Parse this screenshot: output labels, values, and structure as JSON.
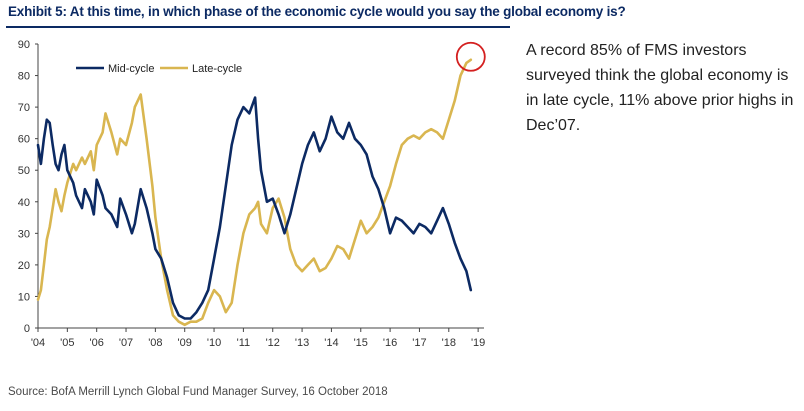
{
  "header": {
    "title": "Exhibit 5: At this time, in which phase of the economic cycle would you say the global economy is?"
  },
  "annotation": {
    "text": "A record 85% of FMS investors surveyed think the global economy is in late cycle, 11% above prior highs in Dec’07."
  },
  "source": {
    "text": "Source: BofA Merrill Lynch Global Fund Manager Survey, 16 October 2018"
  },
  "colors": {
    "mid_cycle": "#0c2a63",
    "late_cycle": "#d9b650",
    "highlight_circle": "#d42020",
    "axis": "#444444"
  },
  "chart_data": {
    "type": "line",
    "title": "",
    "xlabel": "",
    "ylabel": "",
    "ylim": [
      0,
      90
    ],
    "xlim": [
      2004.0,
      2019.2
    ],
    "yticks": [
      "0",
      "10",
      "20",
      "30",
      "40",
      "50",
      "60",
      "70",
      "80",
      "90"
    ],
    "xticks": [
      "'04",
      "'05",
      "'06",
      "'07",
      "'08",
      "'09",
      "'10",
      "'11",
      "'12",
      "'13",
      "'14",
      "'15",
      "'16",
      "'17",
      "'18",
      "'19"
    ],
    "legend": {
      "placement": "top-left",
      "entries": [
        "Mid-cycle",
        "Late-cycle"
      ]
    },
    "grid": false,
    "highlight": {
      "series": "Late-cycle",
      "x": 2018.75,
      "y": 85,
      "marker": "circle"
    },
    "series": [
      {
        "name": "Mid-cycle",
        "x": [
          2004.0,
          2004.1,
          2004.2,
          2004.3,
          2004.4,
          2004.5,
          2004.6,
          2004.7,
          2004.8,
          2004.9,
          2005.0,
          2005.2,
          2005.3,
          2005.5,
          2005.6,
          2005.8,
          2005.9,
          2006.0,
          2006.2,
          2006.3,
          2006.5,
          2006.7,
          2006.8,
          2007.0,
          2007.2,
          2007.3,
          2007.5,
          2007.7,
          2007.9,
          2008.0,
          2008.2,
          2008.4,
          2008.6,
          2008.8,
          2009.0,
          2009.2,
          2009.4,
          2009.6,
          2009.8,
          2010.0,
          2010.2,
          2010.4,
          2010.6,
          2010.8,
          2011.0,
          2011.2,
          2011.4,
          2011.5,
          2011.6,
          2011.8,
          2012.0,
          2012.2,
          2012.4,
          2012.6,
          2012.8,
          2013.0,
          2013.2,
          2013.4,
          2013.6,
          2013.8,
          2014.0,
          2014.2,
          2014.4,
          2014.6,
          2014.8,
          2015.0,
          2015.2,
          2015.4,
          2015.6,
          2015.8,
          2016.0,
          2016.2,
          2016.4,
          2016.6,
          2016.8,
          2017.0,
          2017.2,
          2017.4,
          2017.6,
          2017.8,
          2018.0,
          2018.2,
          2018.4,
          2018.6,
          2018.75
        ],
        "values": [
          58,
          52,
          60,
          66,
          65,
          58,
          52,
          50,
          55,
          58,
          50,
          46,
          42,
          38,
          44,
          40,
          36,
          47,
          42,
          38,
          36,
          32,
          41,
          36,
          30,
          33,
          44,
          38,
          30,
          25,
          22,
          16,
          8,
          4,
          3,
          3,
          5,
          8,
          12,
          22,
          32,
          45,
          58,
          66,
          70,
          68,
          73,
          60,
          50,
          40,
          41,
          36,
          30,
          36,
          44,
          52,
          58,
          62,
          56,
          60,
          67,
          62,
          60,
          65,
          60,
          58,
          55,
          48,
          44,
          38,
          30,
          35,
          34,
          32,
          30,
          33,
          32,
          30,
          34,
          38,
          33,
          27,
          22,
          18,
          12
        ]
      },
      {
        "name": "Late-cycle",
        "x": [
          2004.0,
          2004.1,
          2004.2,
          2004.3,
          2004.4,
          2004.5,
          2004.6,
          2004.7,
          2004.8,
          2004.9,
          2005.0,
          2005.2,
          2005.3,
          2005.5,
          2005.6,
          2005.8,
          2005.9,
          2006.0,
          2006.2,
          2006.3,
          2006.5,
          2006.7,
          2006.8,
          2007.0,
          2007.2,
          2007.3,
          2007.5,
          2007.7,
          2007.9,
          2008.0,
          2008.2,
          2008.4,
          2008.6,
          2008.8,
          2009.0,
          2009.2,
          2009.4,
          2009.6,
          2009.8,
          2010.0,
          2010.2,
          2010.4,
          2010.6,
          2010.8,
          2011.0,
          2011.2,
          2011.4,
          2011.5,
          2011.6,
          2011.8,
          2012.0,
          2012.2,
          2012.4,
          2012.6,
          2012.8,
          2013.0,
          2013.2,
          2013.4,
          2013.6,
          2013.8,
          2014.0,
          2014.2,
          2014.4,
          2014.6,
          2014.8,
          2015.0,
          2015.2,
          2015.4,
          2015.6,
          2015.8,
          2016.0,
          2016.2,
          2016.4,
          2016.6,
          2016.8,
          2017.0,
          2017.2,
          2017.4,
          2017.6,
          2017.8,
          2018.0,
          2018.2,
          2018.4,
          2018.6,
          2018.75
        ],
        "values": [
          9,
          12,
          20,
          28,
          32,
          38,
          44,
          40,
          37,
          42,
          46,
          52,
          50,
          54,
          52,
          56,
          50,
          58,
          62,
          68,
          62,
          55,
          60,
          58,
          65,
          70,
          74,
          60,
          45,
          35,
          22,
          12,
          4,
          2,
          1,
          2,
          2,
          3,
          8,
          12,
          10,
          5,
          8,
          20,
          30,
          36,
          38,
          40,
          33,
          30,
          38,
          41,
          35,
          25,
          20,
          18,
          20,
          22,
          18,
          19,
          22,
          26,
          25,
          22,
          28,
          34,
          30,
          32,
          35,
          40,
          45,
          52,
          58,
          60,
          61,
          60,
          62,
          63,
          62,
          60,
          66,
          72,
          80,
          84,
          85
        ]
      }
    ]
  }
}
